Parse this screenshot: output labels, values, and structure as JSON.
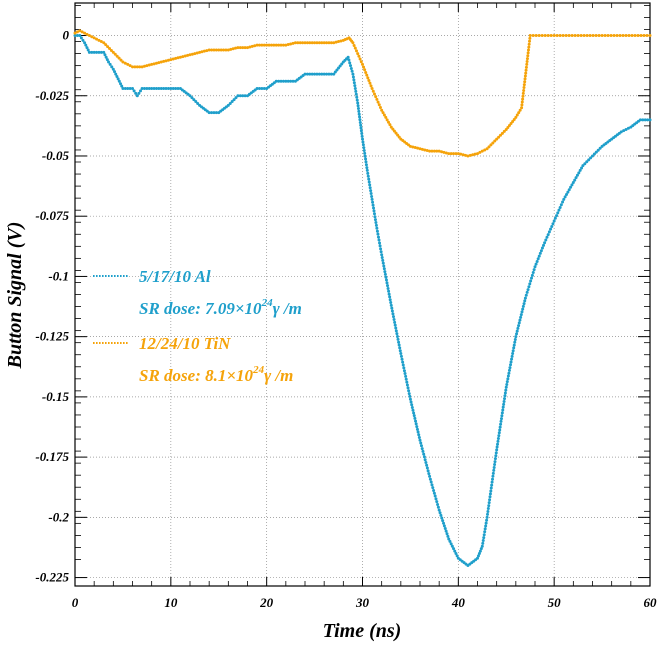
{
  "chart_data": {
    "type": "scatter",
    "title": "",
    "xlabel": "Time (ns)",
    "ylabel": "Button Signal (V)",
    "xlim": [
      0,
      60
    ],
    "ylim": [
      -0.2285,
      0.0135
    ],
    "grid": true,
    "legend_placement": "middle-left",
    "x_ticks": [
      0,
      10,
      20,
      30,
      40,
      50,
      60
    ],
    "x_tick_labels": [
      "0",
      "10",
      "20",
      "30",
      "40",
      "50",
      "60"
    ],
    "y_ticks": [
      0,
      -0.025,
      -0.05,
      -0.075,
      -0.1,
      -0.125,
      -0.15,
      -0.175,
      -0.2,
      -0.225
    ],
    "y_tick_labels": [
      "0",
      "-0.025",
      "-0.05",
      "-0.075",
      "-0.1",
      "-0.125",
      "-0.15",
      "-0.175",
      "-0.2",
      "-0.225"
    ],
    "series": [
      {
        "name": "5/17/10 Al",
        "dose_prefix": "SR dose: 7.09×10",
        "dose_exp": "24",
        "dose_suffix": "γ /m",
        "color": "#1f9fcb",
        "points": [
          [
            0,
            0
          ],
          [
            0.5,
            0
          ],
          [
            1,
            -0.003
          ],
          [
            1.5,
            -0.007
          ],
          [
            2,
            -0.007
          ],
          [
            3,
            -0.007
          ],
          [
            3.5,
            -0.011
          ],
          [
            4,
            -0.014
          ],
          [
            4.5,
            -0.018
          ],
          [
            5,
            -0.022
          ],
          [
            6,
            -0.022
          ],
          [
            6.5,
            -0.025
          ],
          [
            7,
            -0.022
          ],
          [
            8,
            -0.022
          ],
          [
            9,
            -0.022
          ],
          [
            10,
            -0.022
          ],
          [
            11,
            -0.022
          ],
          [
            12,
            -0.025
          ],
          [
            13,
            -0.029
          ],
          [
            14,
            -0.032
          ],
          [
            15,
            -0.032
          ],
          [
            16,
            -0.029
          ],
          [
            17,
            -0.025
          ],
          [
            18,
            -0.025
          ],
          [
            19,
            -0.022
          ],
          [
            20,
            -0.022
          ],
          [
            21,
            -0.019
          ],
          [
            22,
            -0.019
          ],
          [
            23,
            -0.019
          ],
          [
            24,
            -0.016
          ],
          [
            25,
            -0.016
          ],
          [
            26,
            -0.016
          ],
          [
            27,
            -0.016
          ],
          [
            28,
            -0.011
          ],
          [
            28.5,
            -0.009
          ],
          [
            29,
            -0.016
          ],
          [
            29.5,
            -0.028
          ],
          [
            30,
            -0.043
          ],
          [
            30.5,
            -0.056
          ],
          [
            31,
            -0.068
          ],
          [
            31.5,
            -0.08
          ],
          [
            32,
            -0.091
          ],
          [
            33,
            -0.112
          ],
          [
            34,
            -0.132
          ],
          [
            35,
            -0.151
          ],
          [
            36,
            -0.168
          ],
          [
            37,
            -0.183
          ],
          [
            38,
            -0.197
          ],
          [
            39,
            -0.209
          ],
          [
            40,
            -0.217
          ],
          [
            41,
            -0.22
          ],
          [
            42,
            -0.217
          ],
          [
            42.5,
            -0.212
          ],
          [
            43,
            -0.2
          ],
          [
            44,
            -0.172
          ],
          [
            45,
            -0.146
          ],
          [
            46,
            -0.125
          ],
          [
            47,
            -0.109
          ],
          [
            48,
            -0.096
          ],
          [
            49,
            -0.086
          ],
          [
            50,
            -0.077
          ],
          [
            51,
            -0.068
          ],
          [
            52,
            -0.061
          ],
          [
            53,
            -0.054
          ],
          [
            54,
            -0.05
          ],
          [
            55,
            -0.046
          ],
          [
            56,
            -0.043
          ],
          [
            57,
            -0.04
          ],
          [
            58,
            -0.038
          ],
          [
            59,
            -0.035
          ],
          [
            60,
            -0.035
          ]
        ]
      },
      {
        "name": "12/24/10 TiN",
        "dose_prefix": "SR dose: 8.1×10",
        "dose_exp": "24",
        "dose_suffix": "γ /m",
        "color": "#f5a30a",
        "points": [
          [
            0,
            0.001
          ],
          [
            0.5,
            0.002
          ],
          [
            1,
            0.001
          ],
          [
            2,
            -0.001
          ],
          [
            3,
            -0.003
          ],
          [
            4,
            -0.007
          ],
          [
            5,
            -0.011
          ],
          [
            6,
            -0.013
          ],
          [
            7,
            -0.013
          ],
          [
            8,
            -0.012
          ],
          [
            9,
            -0.011
          ],
          [
            10,
            -0.01
          ],
          [
            11,
            -0.009
          ],
          [
            12,
            -0.008
          ],
          [
            13,
            -0.007
          ],
          [
            14,
            -0.006
          ],
          [
            15,
            -0.006
          ],
          [
            16,
            -0.006
          ],
          [
            17,
            -0.005
          ],
          [
            18,
            -0.005
          ],
          [
            19,
            -0.004
          ],
          [
            20,
            -0.004
          ],
          [
            21,
            -0.004
          ],
          [
            22,
            -0.004
          ],
          [
            23,
            -0.003
          ],
          [
            24,
            -0.003
          ],
          [
            25,
            -0.003
          ],
          [
            26,
            -0.003
          ],
          [
            27,
            -0.003
          ],
          [
            28,
            -0.002
          ],
          [
            28.6,
            -0.001
          ],
          [
            29,
            -0.003
          ],
          [
            30,
            -0.012
          ],
          [
            31,
            -0.022
          ],
          [
            32,
            -0.031
          ],
          [
            33,
            -0.038
          ],
          [
            34,
            -0.043
          ],
          [
            35,
            -0.046
          ],
          [
            36,
            -0.047
          ],
          [
            37,
            -0.048
          ],
          [
            38,
            -0.048
          ],
          [
            39,
            -0.049
          ],
          [
            40,
            -0.049
          ],
          [
            41,
            -0.05
          ],
          [
            42,
            -0.049
          ],
          [
            43,
            -0.047
          ],
          [
            44,
            -0.043
          ],
          [
            45,
            -0.039
          ],
          [
            46,
            -0.034
          ],
          [
            46.6,
            -0.03
          ],
          [
            47.5,
            0
          ],
          [
            50,
            0
          ],
          [
            55,
            0
          ],
          [
            60,
            0
          ]
        ]
      }
    ]
  }
}
